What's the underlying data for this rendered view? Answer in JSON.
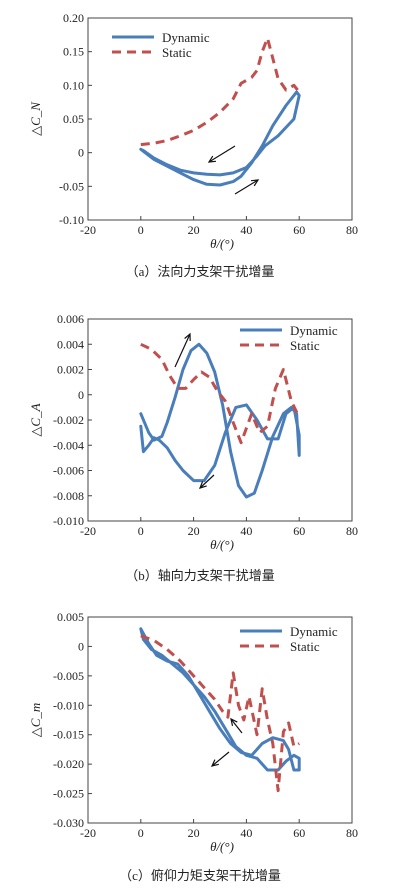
{
  "chart_data": [
    {
      "type": "line",
      "xlabel": "θ/(°)",
      "ylabel": "△C_N",
      "caption": "（a）法向力支架干扰增量",
      "xlim": [
        -20,
        80
      ],
      "ylim": [
        -0.1,
        0.2
      ],
      "xticks": [
        -20,
        0,
        20,
        40,
        60,
        80
      ],
      "yticks": [
        -0.1,
        -0.05,
        0,
        0.05,
        0.1,
        0.15,
        0.2
      ],
      "ytick_labels": [
        "-0.10",
        "-0.05",
        "0",
        "0.05",
        "0.10",
        "0.15",
        "0.20"
      ],
      "legend_position": "top-left",
      "series": [
        {
          "name": "Dynamic",
          "style": "solid",
          "color": "#4a7ebb",
          "x": [
            0,
            5,
            10,
            15,
            20,
            25,
            30,
            35,
            38,
            42,
            46,
            50,
            55,
            59,
            60,
            58,
            52,
            47,
            44,
            40,
            35,
            30,
            25,
            20,
            15,
            10,
            5,
            1,
            0
          ],
          "y": [
            0.005,
            -0.01,
            -0.02,
            -0.03,
            -0.04,
            -0.047,
            -0.048,
            -0.043,
            -0.035,
            -0.015,
            0.01,
            0.04,
            0.07,
            0.09,
            0.085,
            0.05,
            0.025,
            0.01,
            -0.005,
            -0.022,
            -0.03,
            -0.033,
            -0.032,
            -0.03,
            -0.026,
            -0.018,
            -0.008,
            0.003,
            0.005
          ]
        },
        {
          "name": "Static",
          "style": "dashed",
          "color": "#c0504d",
          "x": [
            0,
            5,
            10,
            15,
            20,
            25,
            30,
            35,
            38,
            42,
            44,
            46,
            48,
            50,
            52,
            55,
            58,
            60
          ],
          "y": [
            0.012,
            0.014,
            0.018,
            0.025,
            0.033,
            0.045,
            0.06,
            0.08,
            0.103,
            0.112,
            0.122,
            0.15,
            0.17,
            0.14,
            0.11,
            0.093,
            0.1,
            0.09
          ]
        }
      ],
      "annotations": [
        "arrow-down-left near (38,0.010)",
        "arrow-up-right near (45,-0.040)"
      ]
    },
    {
      "type": "line",
      "xlabel": "θ/(°)",
      "ylabel": "△C_A",
      "caption": "（b）轴向力支架干扰增量",
      "xlim": [
        -20,
        80
      ],
      "ylim": [
        -0.01,
        0.006
      ],
      "xticks": [
        -20,
        0,
        20,
        40,
        60,
        80
      ],
      "yticks": [
        -0.01,
        -0.008,
        -0.006,
        -0.004,
        -0.002,
        0,
        0.002,
        0.004,
        0.006
      ],
      "ytick_labels": [
        "-0.010",
        "-0.008",
        "-0.006",
        "-0.004",
        "-0.002",
        "0",
        "0.002",
        "0.004",
        "0.006"
      ],
      "legend_position": "top-right",
      "series": [
        {
          "name": "Dynamic",
          "style": "solid",
          "color": "#4a7ebb",
          "x": [
            0,
            3,
            5,
            8,
            10,
            13,
            16,
            19,
            22,
            25,
            28,
            31,
            34,
            37,
            40,
            43,
            46,
            50,
            54,
            57,
            59,
            60,
            60,
            58,
            55,
            52,
            48,
            44,
            40,
            36,
            32,
            28,
            24,
            20,
            16,
            13,
            10,
            7,
            5,
            3,
            1,
            0
          ],
          "y": [
            -0.0015,
            -0.003,
            -0.0036,
            -0.0033,
            -0.0022,
            -0.0002,
            0.002,
            0.0035,
            0.004,
            0.0033,
            0.0018,
            -0.0008,
            -0.0045,
            -0.0072,
            -0.0081,
            -0.0078,
            -0.006,
            -0.0033,
            -0.0015,
            -0.001,
            -0.0015,
            -0.0048,
            -0.0032,
            -0.001,
            -0.0015,
            -0.0035,
            -0.0035,
            -0.002,
            -0.0008,
            -0.001,
            -0.003,
            -0.0056,
            -0.0068,
            -0.0068,
            -0.006,
            -0.0052,
            -0.0042,
            -0.0036,
            -0.0034,
            -0.004,
            -0.0045,
            -0.0025
          ]
        },
        {
          "name": "Static",
          "style": "dashed",
          "color": "#c0504d",
          "x": [
            0,
            4,
            8,
            11,
            14,
            17,
            20,
            23,
            26,
            29,
            32,
            35,
            38,
            42,
            45,
            48,
            51,
            54,
            57,
            60
          ],
          "y": [
            0.004,
            0.0036,
            0.0028,
            0.0015,
            0.0005,
            0.0005,
            0.0012,
            0.0018,
            0.0014,
            0.0003,
            -0.0005,
            -0.0022,
            -0.0038,
            -0.0015,
            -0.003,
            -0.0025,
            0.0005,
            0.002,
            -0.0005,
            -0.0018
          ]
        }
      ],
      "annotations": [
        "arrow-up-right near (18,0.002)",
        "arrow-down-left near (27,-0.006)"
      ]
    },
    {
      "type": "line",
      "xlabel": "θ/(°)",
      "ylabel": "△C_m",
      "caption": "（c）俯仰力矩支架干扰增量",
      "xlim": [
        -20,
        80
      ],
      "ylim": [
        -0.03,
        0.005
      ],
      "xticks": [
        -20,
        0,
        20,
        40,
        60,
        80
      ],
      "yticks": [
        -0.03,
        -0.025,
        -0.02,
        -0.015,
        -0.01,
        -0.005,
        0,
        0.005
      ],
      "ytick_labels": [
        "-0.030",
        "-0.025",
        "-0.020",
        "-0.015",
        "-0.010",
        "-0.005",
        "0",
        "0.005"
      ],
      "legend_position": "top-right",
      "series": [
        {
          "name": "Dynamic",
          "style": "solid",
          "color": "#4a7ebb",
          "x": [
            0,
            3,
            6,
            10,
            14,
            18,
            22,
            26,
            30,
            34,
            38,
            42,
            46,
            50,
            54,
            56,
            58,
            60,
            60,
            58,
            55,
            52,
            48,
            44,
            40,
            36,
            32,
            28,
            24,
            20,
            16,
            12,
            8,
            4,
            1,
            0
          ],
          "y": [
            0.003,
            0.0005,
            -0.0015,
            -0.0025,
            -0.003,
            -0.005,
            -0.008,
            -0.011,
            -0.014,
            -0.0165,
            -0.018,
            -0.0185,
            -0.0165,
            -0.0155,
            -0.016,
            -0.0175,
            -0.021,
            -0.021,
            -0.019,
            -0.0185,
            -0.0195,
            -0.021,
            -0.021,
            -0.019,
            -0.0185,
            -0.017,
            -0.014,
            -0.011,
            -0.0085,
            -0.0065,
            -0.0045,
            -0.003,
            -0.0015,
            -0.0005,
            0.0012,
            0.003
          ]
        },
        {
          "name": "Static",
          "style": "dashed",
          "color": "#c0504d",
          "x": [
            0,
            5,
            10,
            15,
            20,
            25,
            28,
            31,
            33,
            35,
            37,
            39,
            41,
            44,
            46,
            48,
            50,
            52,
            54,
            56,
            58,
            60
          ],
          "y": [
            0.0018,
            0.001,
            -0.0005,
            -0.0025,
            -0.005,
            -0.0075,
            -0.009,
            -0.011,
            -0.012,
            -0.0045,
            -0.01,
            -0.0125,
            -0.0085,
            -0.015,
            -0.0072,
            -0.0125,
            -0.0165,
            -0.0245,
            -0.0145,
            -0.013,
            -0.017,
            -0.0165
          ]
        }
      ],
      "annotations": [
        "arrow-up-left near (31,-0.0125)",
        "arrow-down-left near (28,-0.020)"
      ]
    }
  ]
}
